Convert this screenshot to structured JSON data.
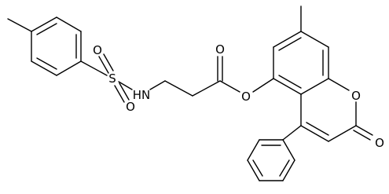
{
  "atoms": {
    "sulfur": "S",
    "sulfonyl_o1": "O",
    "sulfonyl_o2": "O",
    "amine": "HN",
    "carbonyl_o": "O",
    "ester_o": "O",
    "ring_o": "O",
    "lactone_o": "O"
  }
}
